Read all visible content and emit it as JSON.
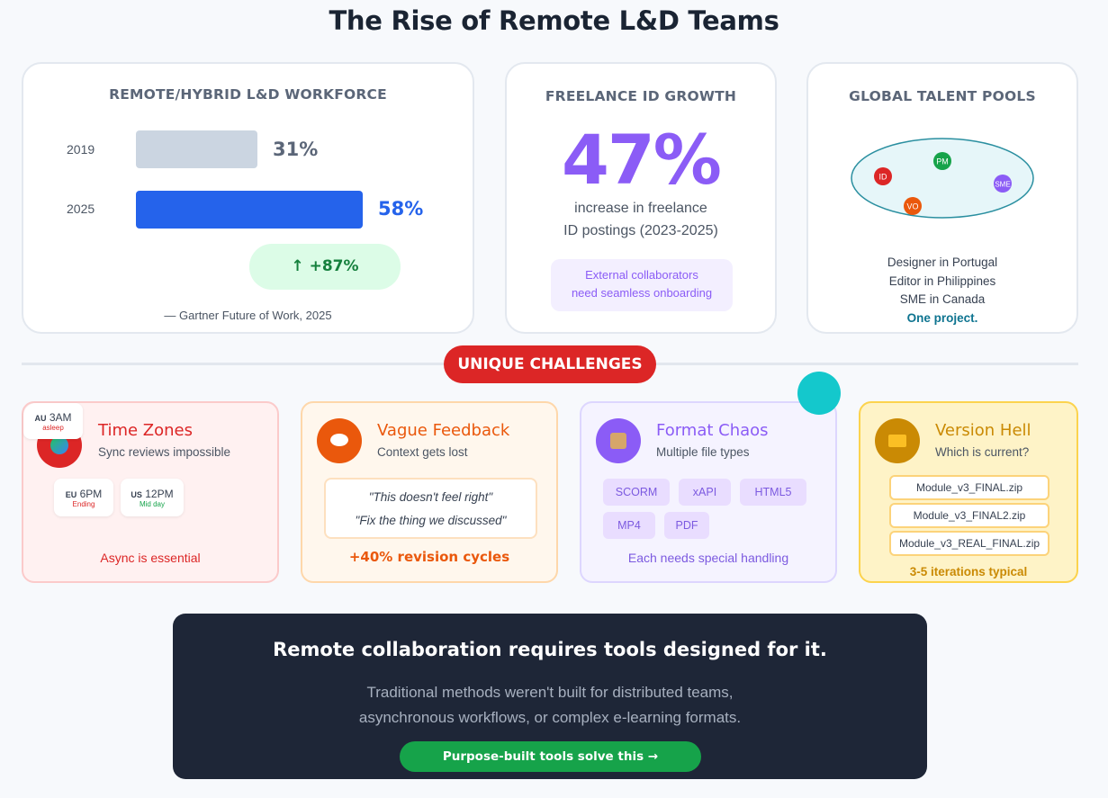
{
  "title": "The Rise of Remote L&D Teams",
  "workforce": {
    "heading": "REMOTE/HYBRID L&D WORKFORCE",
    "bars": [
      {
        "year": "2019",
        "value_label": "31%",
        "value": 31,
        "color": "#cbd5e1",
        "value_color": "#5b6678"
      },
      {
        "year": "2025",
        "value_label": "58%",
        "value": 58,
        "color": "#2563eb",
        "value_color": "#2563eb"
      }
    ],
    "growth": "↑ +87%",
    "source": "— Gartner Future of Work, 2025"
  },
  "freelance": {
    "heading": "FREELANCE ID GROWTH",
    "stat": "47%",
    "desc_line1": "increase in freelance",
    "desc_line2": "ID postings (2023-2025)",
    "note_line1": "External collaborators",
    "note_line2": "need seamless onboarding"
  },
  "talent": {
    "heading": "GLOBAL TALENT POOLS",
    "nodes": [
      {
        "label": "ID",
        "color": "#dc2626"
      },
      {
        "label": "PM",
        "color": "#16a34a"
      },
      {
        "label": "SME",
        "color": "#8b5cf6"
      },
      {
        "label": "VO",
        "color": "#ea580c"
      }
    ],
    "lines": [
      "Designer in Portugal",
      "Editor in Philippines",
      "SME in Canada"
    ],
    "emphasis": "One project."
  },
  "challenges_label": "UNIQUE CHALLENGES",
  "challenges": {
    "timezones": {
      "title": "Time Zones",
      "subtitle": "Sync reviews impossible",
      "clocks": [
        {
          "region": "AU",
          "time": "3AM",
          "state": "asleep",
          "state_color": "#dc2626"
        },
        {
          "region": "EU",
          "time": "6PM",
          "state": "Ending",
          "state_color": "#dc2626"
        },
        {
          "region": "US",
          "time": "12PM",
          "state": "Mid day",
          "state_color": "#16a34a"
        }
      ],
      "footer": "Async is essential"
    },
    "feedback": {
      "title": "Vague Feedback",
      "subtitle": "Context gets lost",
      "quote1": "\"This doesn't feel right\"",
      "quote2": "\"Fix the thing we discussed\"",
      "footer": "+40% revision cycles"
    },
    "formats": {
      "title": "Format Chaos",
      "subtitle": "Multiple file types",
      "tags": [
        "SCORM",
        "xAPI",
        "HTML5",
        "MP4",
        "PDF"
      ],
      "footer": "Each needs special handling"
    },
    "versions": {
      "title": "Version Hell",
      "subtitle": "Which is current?",
      "files": [
        "Module_v3_FINAL.zip",
        "Module_v3_FINAL2.zip",
        "Module_v3_REAL_FINAL.zip"
      ],
      "footer": "3-5 iterations typical"
    }
  },
  "bottom": {
    "heading": "Remote collaboration requires tools designed for it.",
    "line1": "Traditional methods weren't built for distributed teams,",
    "line2": "asynchronous workflows, or complex e-learning formats.",
    "cta": "Purpose-built tools solve this →"
  }
}
